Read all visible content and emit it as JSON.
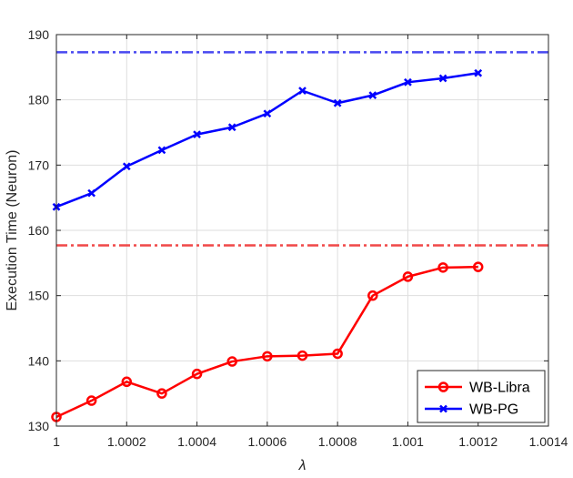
{
  "chart_data": {
    "type": "line",
    "xlabel": "λ",
    "ylabel": "Execution Time (Neuron)",
    "xlim": [
      1,
      1.0014
    ],
    "ylim": [
      130,
      190
    ],
    "x_ticks": [
      "1",
      "1.0002",
      "1.0004",
      "1.0006",
      "1.0008",
      "1.001",
      "1.0012",
      "1.0014"
    ],
    "y_ticks": [
      "130",
      "140",
      "150",
      "160",
      "170",
      "180",
      "190"
    ],
    "grid": true,
    "legend_position": "bottom-right",
    "x": [
      1.0,
      1.0001,
      1.0002,
      1.0003,
      1.0004,
      1.0005,
      1.0006,
      1.0007,
      1.0008,
      1.0009,
      1.001,
      1.0011,
      1.0012
    ],
    "series": [
      {
        "name": "WB-Libra",
        "color": "#ff0000",
        "marker": "circle",
        "values": [
          131.4,
          133.9,
          136.8,
          135.0,
          138.0,
          139.9,
          140.7,
          140.8,
          141.1,
          150.0,
          152.9,
          154.3,
          154.4
        ],
        "reference_line": 157.7,
        "reference_color": "#f04848"
      },
      {
        "name": "WB-PG",
        "color": "#0000ff",
        "marker": "x",
        "values": [
          163.6,
          165.7,
          169.8,
          172.3,
          174.7,
          175.8,
          177.9,
          181.4,
          179.5,
          180.7,
          182.7,
          183.3,
          184.1
        ],
        "reference_line": 187.3,
        "reference_color": "#4848f0"
      }
    ]
  }
}
